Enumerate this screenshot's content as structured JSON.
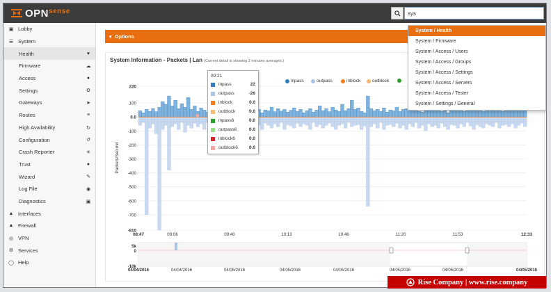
{
  "app": {
    "logo_main": "OPN",
    "logo_sub": "sense",
    "search_value": "sys"
  },
  "sidebar": {
    "items": [
      {
        "label": "Lobby",
        "icon": "laptop-icon",
        "level": 0
      },
      {
        "label": "System",
        "icon": "list-icon",
        "level": 0
      },
      {
        "label": "Health",
        "icon": "heartbeat-icon",
        "level": 1,
        "active": true
      },
      {
        "label": "Firmware",
        "icon": "cloud-download-icon",
        "level": 1
      },
      {
        "label": "Access",
        "icon": "users-icon",
        "level": 1
      },
      {
        "label": "Settings",
        "icon": "gears-icon",
        "level": 1
      },
      {
        "label": "Gateways",
        "icon": "location-arrow-icon",
        "level": 1
      },
      {
        "label": "Routes",
        "icon": "map-signs-icon",
        "level": 1
      },
      {
        "label": "High Availability",
        "icon": "refresh-icon",
        "level": 1
      },
      {
        "label": "Configuration",
        "icon": "history-icon",
        "level": 1
      },
      {
        "label": "Crash Reporter",
        "icon": "bug-icon",
        "level": 1
      },
      {
        "label": "Trust",
        "icon": "certificate-icon",
        "level": 1
      },
      {
        "label": "Wizard",
        "icon": "magic-icon",
        "level": 1
      },
      {
        "label": "Log File",
        "icon": "eye-icon",
        "level": 1
      },
      {
        "label": "Diagnostics",
        "icon": "medkit-icon",
        "level": 1
      },
      {
        "label": "Interfaces",
        "icon": "sitemap-icon",
        "level": 0
      },
      {
        "label": "Firewall",
        "icon": "fire-icon",
        "level": 0
      },
      {
        "label": "VPN",
        "icon": "globe-icon",
        "level": 0
      },
      {
        "label": "Services",
        "icon": "cog-icon",
        "level": 0
      },
      {
        "label": "Help",
        "icon": "life-ring-icon",
        "level": 0
      }
    ]
  },
  "options": {
    "label": "Options"
  },
  "panel": {
    "title": "System Information - Packets | Lan",
    "note": "(Current detail is showing 2 minutes averages.)"
  },
  "dropdown": {
    "items": [
      "System / Health",
      "System / Firmware",
      "System / Access / Users",
      "System / Access / Groups",
      "System / Access / Settings",
      "System / Access / Servers",
      "System / Access / Tester",
      "System / Settings / General"
    ]
  },
  "tooltip": {
    "time": "09:21",
    "rows": [
      {
        "name": "inpass",
        "value": "22",
        "color": "#2d7dbf"
      },
      {
        "name": "outpass",
        "value": "-26",
        "color": "#a9c4e8"
      },
      {
        "name": "inblock",
        "value": "0.0",
        "color": "#f07c1b"
      },
      {
        "name": "outblock",
        "value": "0.0",
        "color": "#f7b970"
      },
      {
        "name": "inpass6",
        "value": "0.0",
        "color": "#2ca02c"
      },
      {
        "name": "outpass6",
        "value": "0.0",
        "color": "#98df8a"
      },
      {
        "name": "inblock6",
        "value": "0.0",
        "color": "#d62728"
      },
      {
        "name": "outblock6",
        "value": "0.0",
        "color": "#f4a6a6"
      }
    ]
  },
  "legend": [
    {
      "name": "inpass",
      "color": "#2d7dbf"
    },
    {
      "name": "outpass",
      "color": "#a9c4e8"
    },
    {
      "name": "inblock",
      "color": "#f07c1b"
    },
    {
      "name": "outblock",
      "color": "#f7b970"
    },
    {
      "name": "",
      "color": "#2ca02c"
    }
  ],
  "chart_data": {
    "type": "area",
    "ylabel": "Packets/Second",
    "ylim": [
      -810,
      220
    ],
    "yticks": [
      "220",
      "100",
      "0.0",
      "-100",
      "-200",
      "-300",
      "-400",
      "-500",
      "-600",
      "-700",
      "-810"
    ],
    "xticks": [
      "08:47",
      "09:06",
      "09:40",
      "10:13",
      "10:46",
      "11:20",
      "11:53",
      "12:33"
    ],
    "series": [
      {
        "name": "inpass",
        "color": "#2d7dbf",
        "values": [
          45,
          30,
          55,
          40,
          60,
          38,
          70,
          110,
          90,
          150,
          80,
          120,
          60,
          95,
          70,
          140,
          55,
          80,
          40,
          65,
          50,
          35,
          90,
          45,
          70,
          40,
          55,
          30,
          60,
          45,
          80,
          50,
          35,
          60,
          45,
          95,
          40,
          55,
          30,
          50,
          45,
          70,
          38,
          60,
          42,
          55,
          35,
          48,
          65,
          40,
          55,
          30,
          45,
          60,
          35,
          50,
          80,
          45,
          60,
          38,
          70,
          50,
          40,
          90,
          45,
          60,
          120,
          55,
          65,
          40,
          30,
          150,
          60,
          45,
          55,
          40,
          65,
          35,
          50,
          45,
          70,
          40,
          55,
          60,
          45,
          80,
          50,
          40,
          35,
          55,
          60,
          45,
          70,
          50,
          40,
          55,
          30,
          45,
          60,
          50,
          65,
          40,
          55,
          70,
          45,
          50,
          60,
          40,
          55,
          75,
          45,
          60,
          50,
          40,
          65,
          55,
          70,
          45,
          60,
          50,
          80
        ]
      },
      {
        "name": "outpass",
        "color": "#a9c4e8",
        "values": [
          -60,
          -40,
          -700,
          -80,
          -50,
          -120,
          -810,
          -90,
          -60,
          -380,
          -70,
          -50,
          -90,
          -40,
          -110,
          -60,
          -80,
          -45,
          -70,
          -50,
          -90,
          -40,
          -60,
          -100,
          -50,
          -80,
          -40,
          -70,
          -55,
          -90,
          -40,
          -120,
          -60,
          -50,
          -80,
          -40,
          -70,
          -60,
          -90,
          -45,
          -60,
          -80,
          -50,
          -70,
          -40,
          -90,
          -55,
          -65,
          -80,
          -45,
          -70,
          -50,
          -60,
          -90,
          -40,
          -70,
          -55,
          -80,
          -60,
          -45,
          -70,
          -90,
          -60,
          -50,
          -80,
          -40,
          -70,
          -60,
          -55,
          -90,
          -65,
          -640,
          -70,
          -50,
          -80,
          -40,
          -90,
          -60,
          -55,
          -70,
          -45,
          -80,
          -60,
          -90,
          -50,
          -70,
          -40,
          -80,
          -60,
          -100,
          -50,
          -70,
          -60,
          -80,
          -45,
          -70,
          -90,
          -55,
          -60,
          -80,
          -50,
          -70,
          -40,
          -65,
          -90,
          -55,
          -70,
          -80,
          -50,
          -60,
          -70,
          -40,
          -80,
          -60,
          -55,
          -70,
          -50,
          -80,
          -60,
          -45,
          -70
        ]
      },
      {
        "name": "inblock",
        "color": "#f07c1b",
        "values": []
      },
      {
        "name": "outblock",
        "color": "#f7b970",
        "values": []
      }
    ],
    "navigator": {
      "yticks": [
        "5k",
        "0",
        "-10k"
      ],
      "xticks": [
        "04/04/2016",
        "04/04/2016",
        "04/05/2016",
        "04/05/2016",
        "04/05/2016",
        "04/05/2016",
        "04/05/2016",
        "04/05/2016"
      ]
    }
  },
  "watermark": {
    "text": "Rise Company | www.rise.company"
  }
}
